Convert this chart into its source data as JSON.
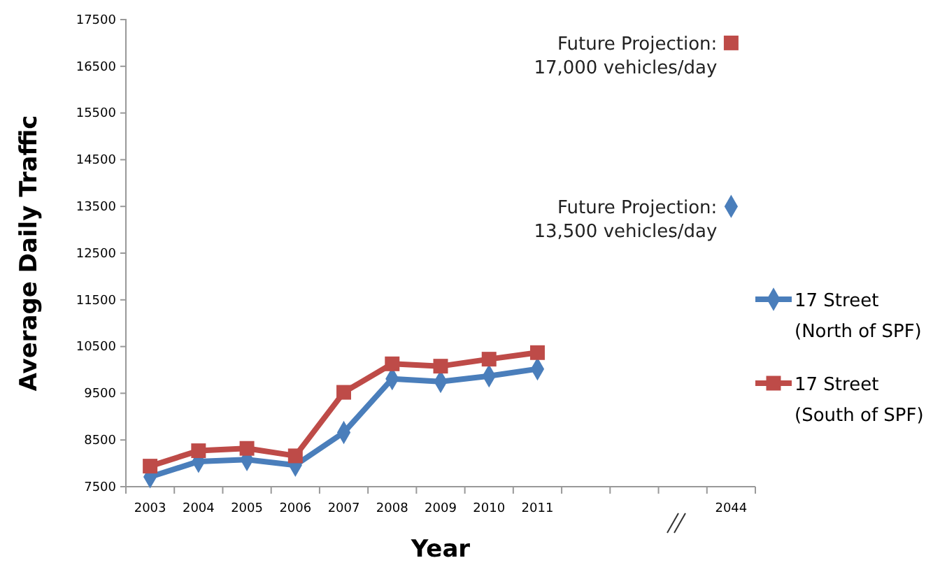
{
  "chart_data": {
    "type": "line",
    "xlabel": "Year",
    "ylabel": "Average Daily Traffic",
    "categories": [
      "2003",
      "2004",
      "2005",
      "2006",
      "2007",
      "2008",
      "2009",
      "2010",
      "2011",
      null,
      null,
      null,
      "2044"
    ],
    "series": [
      {
        "name": "17 Street\n(North of SPF)",
        "color": "#4a7ebb",
        "marker": "diamond",
        "values": [
          7710,
          8040,
          8080,
          7960,
          8660,
          9810,
          9750,
          9870,
          10020,
          null,
          null,
          null,
          13500
        ]
      },
      {
        "name": "17 Street\n(South of SPF)",
        "color": "#be4b48",
        "marker": "square",
        "values": [
          7940,
          8270,
          8320,
          8160,
          9520,
          10130,
          10080,
          10230,
          10370,
          null,
          null,
          null,
          17000
        ]
      }
    ],
    "ylim": [
      7500,
      17500
    ],
    "yticks": [
      7500,
      8500,
      9500,
      10500,
      11500,
      12500,
      13500,
      14500,
      15500,
      16500,
      17500
    ],
    "grid": false,
    "legend": "right",
    "annotations": [
      {
        "text": "Future Projection:\n17,000 vehicles/day",
        "x": "2044",
        "y": 17000
      },
      {
        "text": "Future Projection:\n13,500 vehicles/day",
        "x": "2044",
        "y": 13500
      }
    ]
  }
}
